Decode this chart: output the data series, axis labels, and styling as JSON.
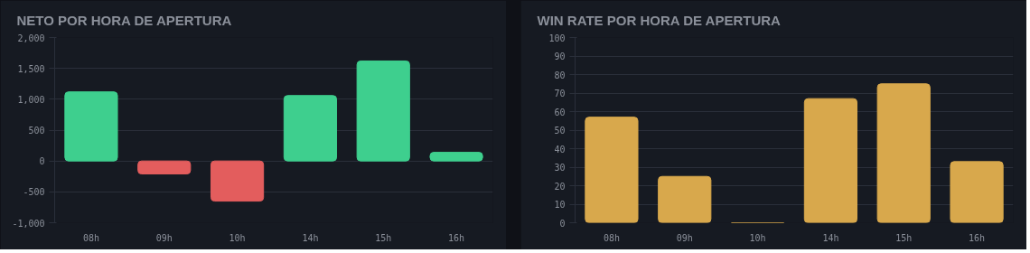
{
  "chart_data": [
    {
      "type": "bar",
      "title": "NETO POR HORA DE APERTURA",
      "categories": [
        "08h",
        "09h",
        "10h",
        "14h",
        "15h",
        "16h"
      ],
      "values": [
        1120,
        -210,
        -650,
        1060,
        1620,
        140
      ],
      "colors": [
        "#3ecf8e",
        "#e35d5d",
        "#e35d5d",
        "#3ecf8e",
        "#3ecf8e",
        "#3ecf8e"
      ],
      "ylim": [
        -1000,
        2000
      ],
      "yticks": [
        {
          "value": -1000,
          "label": "-1,000"
        },
        -500,
        0,
        500,
        {
          "value": 1000,
          "label": "1,000"
        },
        {
          "value": 1500,
          "label": "1,500"
        },
        {
          "value": 2000,
          "label": "2,000"
        }
      ],
      "grid": "y"
    },
    {
      "type": "bar",
      "title": "WIN RATE POR HORA DE APERTURA",
      "categories": [
        "08h",
        "09h",
        "10h",
        "14h",
        "15h",
        "16h"
      ],
      "series": [
        {
          "color": "#d8a84c",
          "values": [
            57,
            25,
            0,
            67,
            75,
            33
          ]
        }
      ],
      "ylim": [
        0,
        100
      ],
      "yticks": [
        0,
        10,
        20,
        30,
        40,
        50,
        60,
        70,
        80,
        90,
        100
      ],
      "grid": "y"
    }
  ]
}
